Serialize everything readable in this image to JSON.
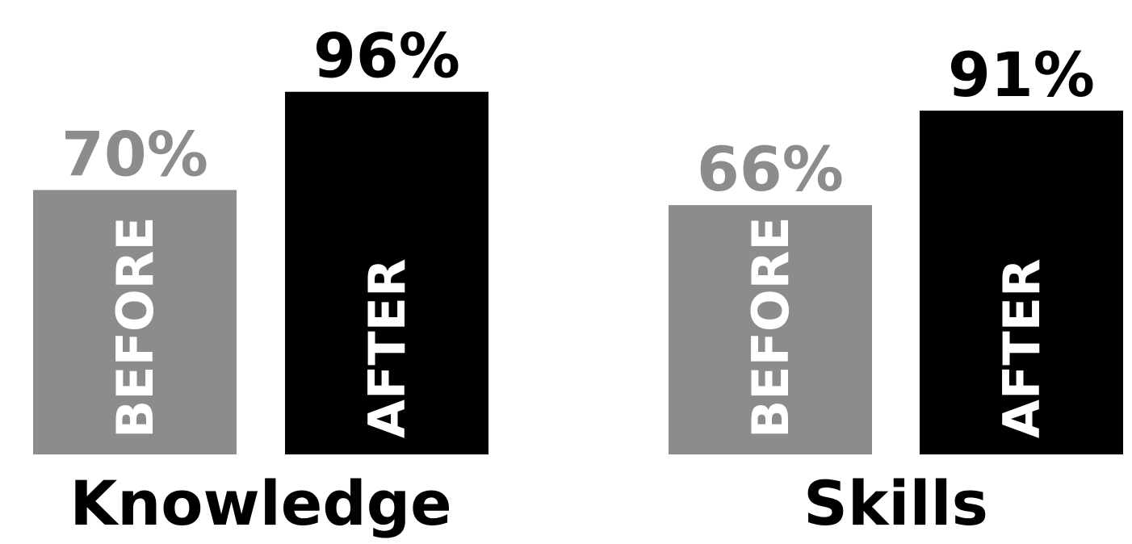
{
  "chart_data": [
    {
      "type": "bar",
      "title": "Knowledge",
      "categories": [
        "BEFORE",
        "AFTER"
      ],
      "values": [
        70,
        96
      ],
      "value_labels": [
        "70%",
        "96%"
      ],
      "colors": [
        "#8c8c8c",
        "#000000"
      ],
      "ylim": [
        0,
        100
      ]
    },
    {
      "type": "bar",
      "title": "Skills",
      "categories": [
        "BEFORE",
        "AFTER"
      ],
      "values": [
        66,
        91
      ],
      "value_labels": [
        "66%",
        "91%"
      ],
      "colors": [
        "#8c8c8c",
        "#000000"
      ],
      "ylim": [
        0,
        100
      ]
    }
  ]
}
